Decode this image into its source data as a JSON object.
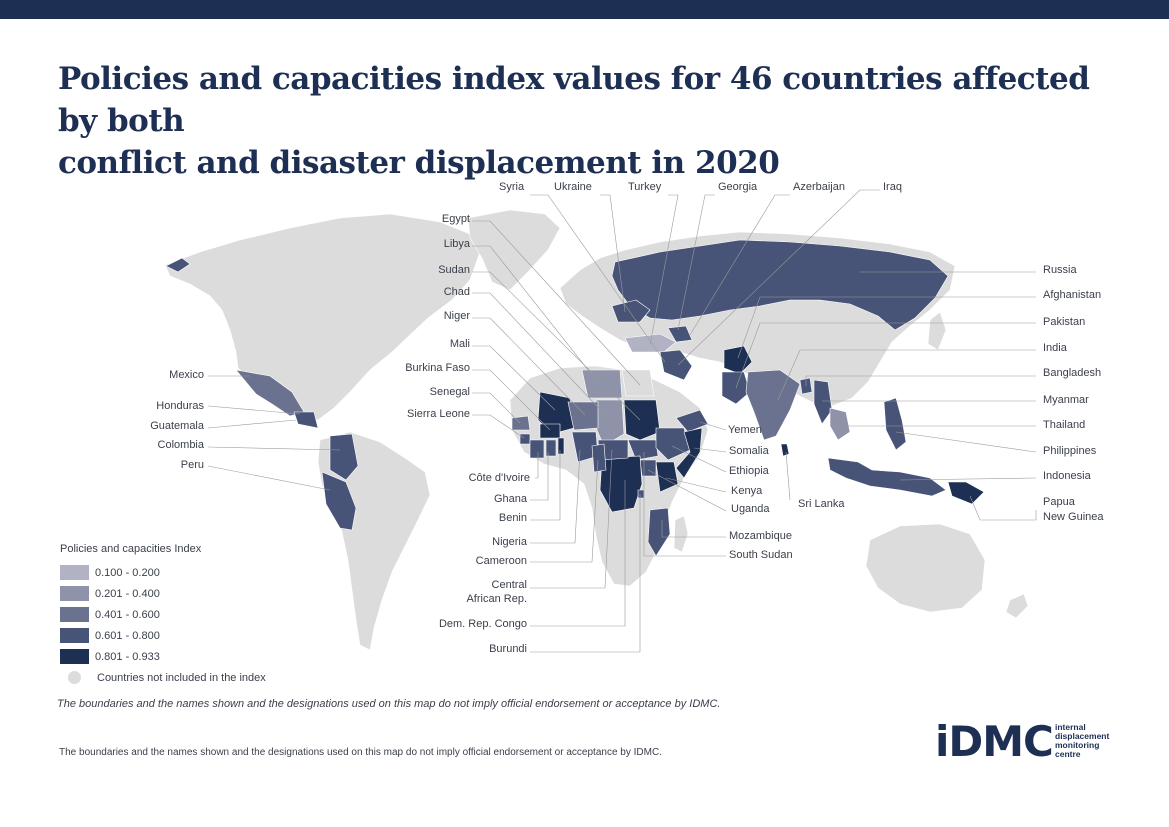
{
  "title": {
    "line1": "Policies and capacities index values for 46 countries affected by both",
    "line2": "conflict and disaster displacement in 2020"
  },
  "colors": {
    "topbar": "#1e2f54",
    "land": "#dcdcdc",
    "c1": "#b1b3c4",
    "c2": "#8e93aa",
    "c3": "#6b7290",
    "c4": "#475478",
    "c5": "#1e2f54",
    "leader": "#9a9a9a"
  },
  "labels": {
    "syria": "Syria",
    "ukraine": "Ukraine",
    "turkey": "Turkey",
    "georgia": "Georgia",
    "azerbaijan": "Azerbaijan",
    "iraq": "Iraq",
    "egypt": "Egypt",
    "libya": "Libya",
    "sudan": "Sudan",
    "chad": "Chad",
    "niger": "Niger",
    "mali": "Mali",
    "burkina_faso": "Burkina Faso",
    "senegal": "Senegal",
    "sierra_leone": "Sierra Leone",
    "mexico": "Mexico",
    "honduras": "Honduras",
    "guatemala": "Guatemala",
    "colombia": "Colombia",
    "peru": "Peru",
    "cote_divoire": "Côte d'Ivoire",
    "ghana": "Ghana",
    "benin": "Benin",
    "nigeria": "Nigeria",
    "cameroon": "Cameroon",
    "central_african_rep_1": "Central",
    "central_african_rep_2": "African Rep.",
    "dem_rep_congo": "Dem. Rep. Congo",
    "burundi": "Burundi",
    "yemen": "Yemen",
    "somalia": "Somalia",
    "ethiopia": "Ethiopia",
    "kenya": "Kenya",
    "uganda": "Uganda",
    "mozambique": "Mozambique",
    "south_sudan": "South Sudan",
    "sri_lanka": "Sri Lanka",
    "russia": "Russia",
    "afghanistan": "Afghanistan",
    "pakistan": "Pakistan",
    "india": "India",
    "bangladesh": "Bangladesh",
    "myanmar": "Myanmar",
    "thailand": "Thailand",
    "philippines": "Philippines",
    "indonesia": "Indonesia",
    "png_1": "Papua",
    "png_2": "New Guinea"
  },
  "legend": {
    "title": "Policies and capacities Index",
    "items": [
      {
        "range": "0.100 - 0.200",
        "color": "#b1b3c4"
      },
      {
        "range": "0.201 - 0.400",
        "color": "#8e93aa"
      },
      {
        "range": "0.401 - 0.600",
        "color": "#6b7290"
      },
      {
        "range": "0.601 - 0.800",
        "color": "#475478"
      },
      {
        "range": "0.801 - 0.933",
        "color": "#1e2f54"
      }
    ],
    "not_included": "Countries not included in the index"
  },
  "disclaimer_italic": "The boundaries and the names shown and the designations used on this map do not imply official endorsement or acceptance by IDMC.",
  "disclaimer": "The boundaries and the names shown and the designations used on this map do not imply official endorsement or acceptance by IDMC.",
  "logo": {
    "mark": "iDMC",
    "tag1": "internal",
    "tag2": "displacement",
    "tag3": "monitoring",
    "tag4": "centre"
  }
}
